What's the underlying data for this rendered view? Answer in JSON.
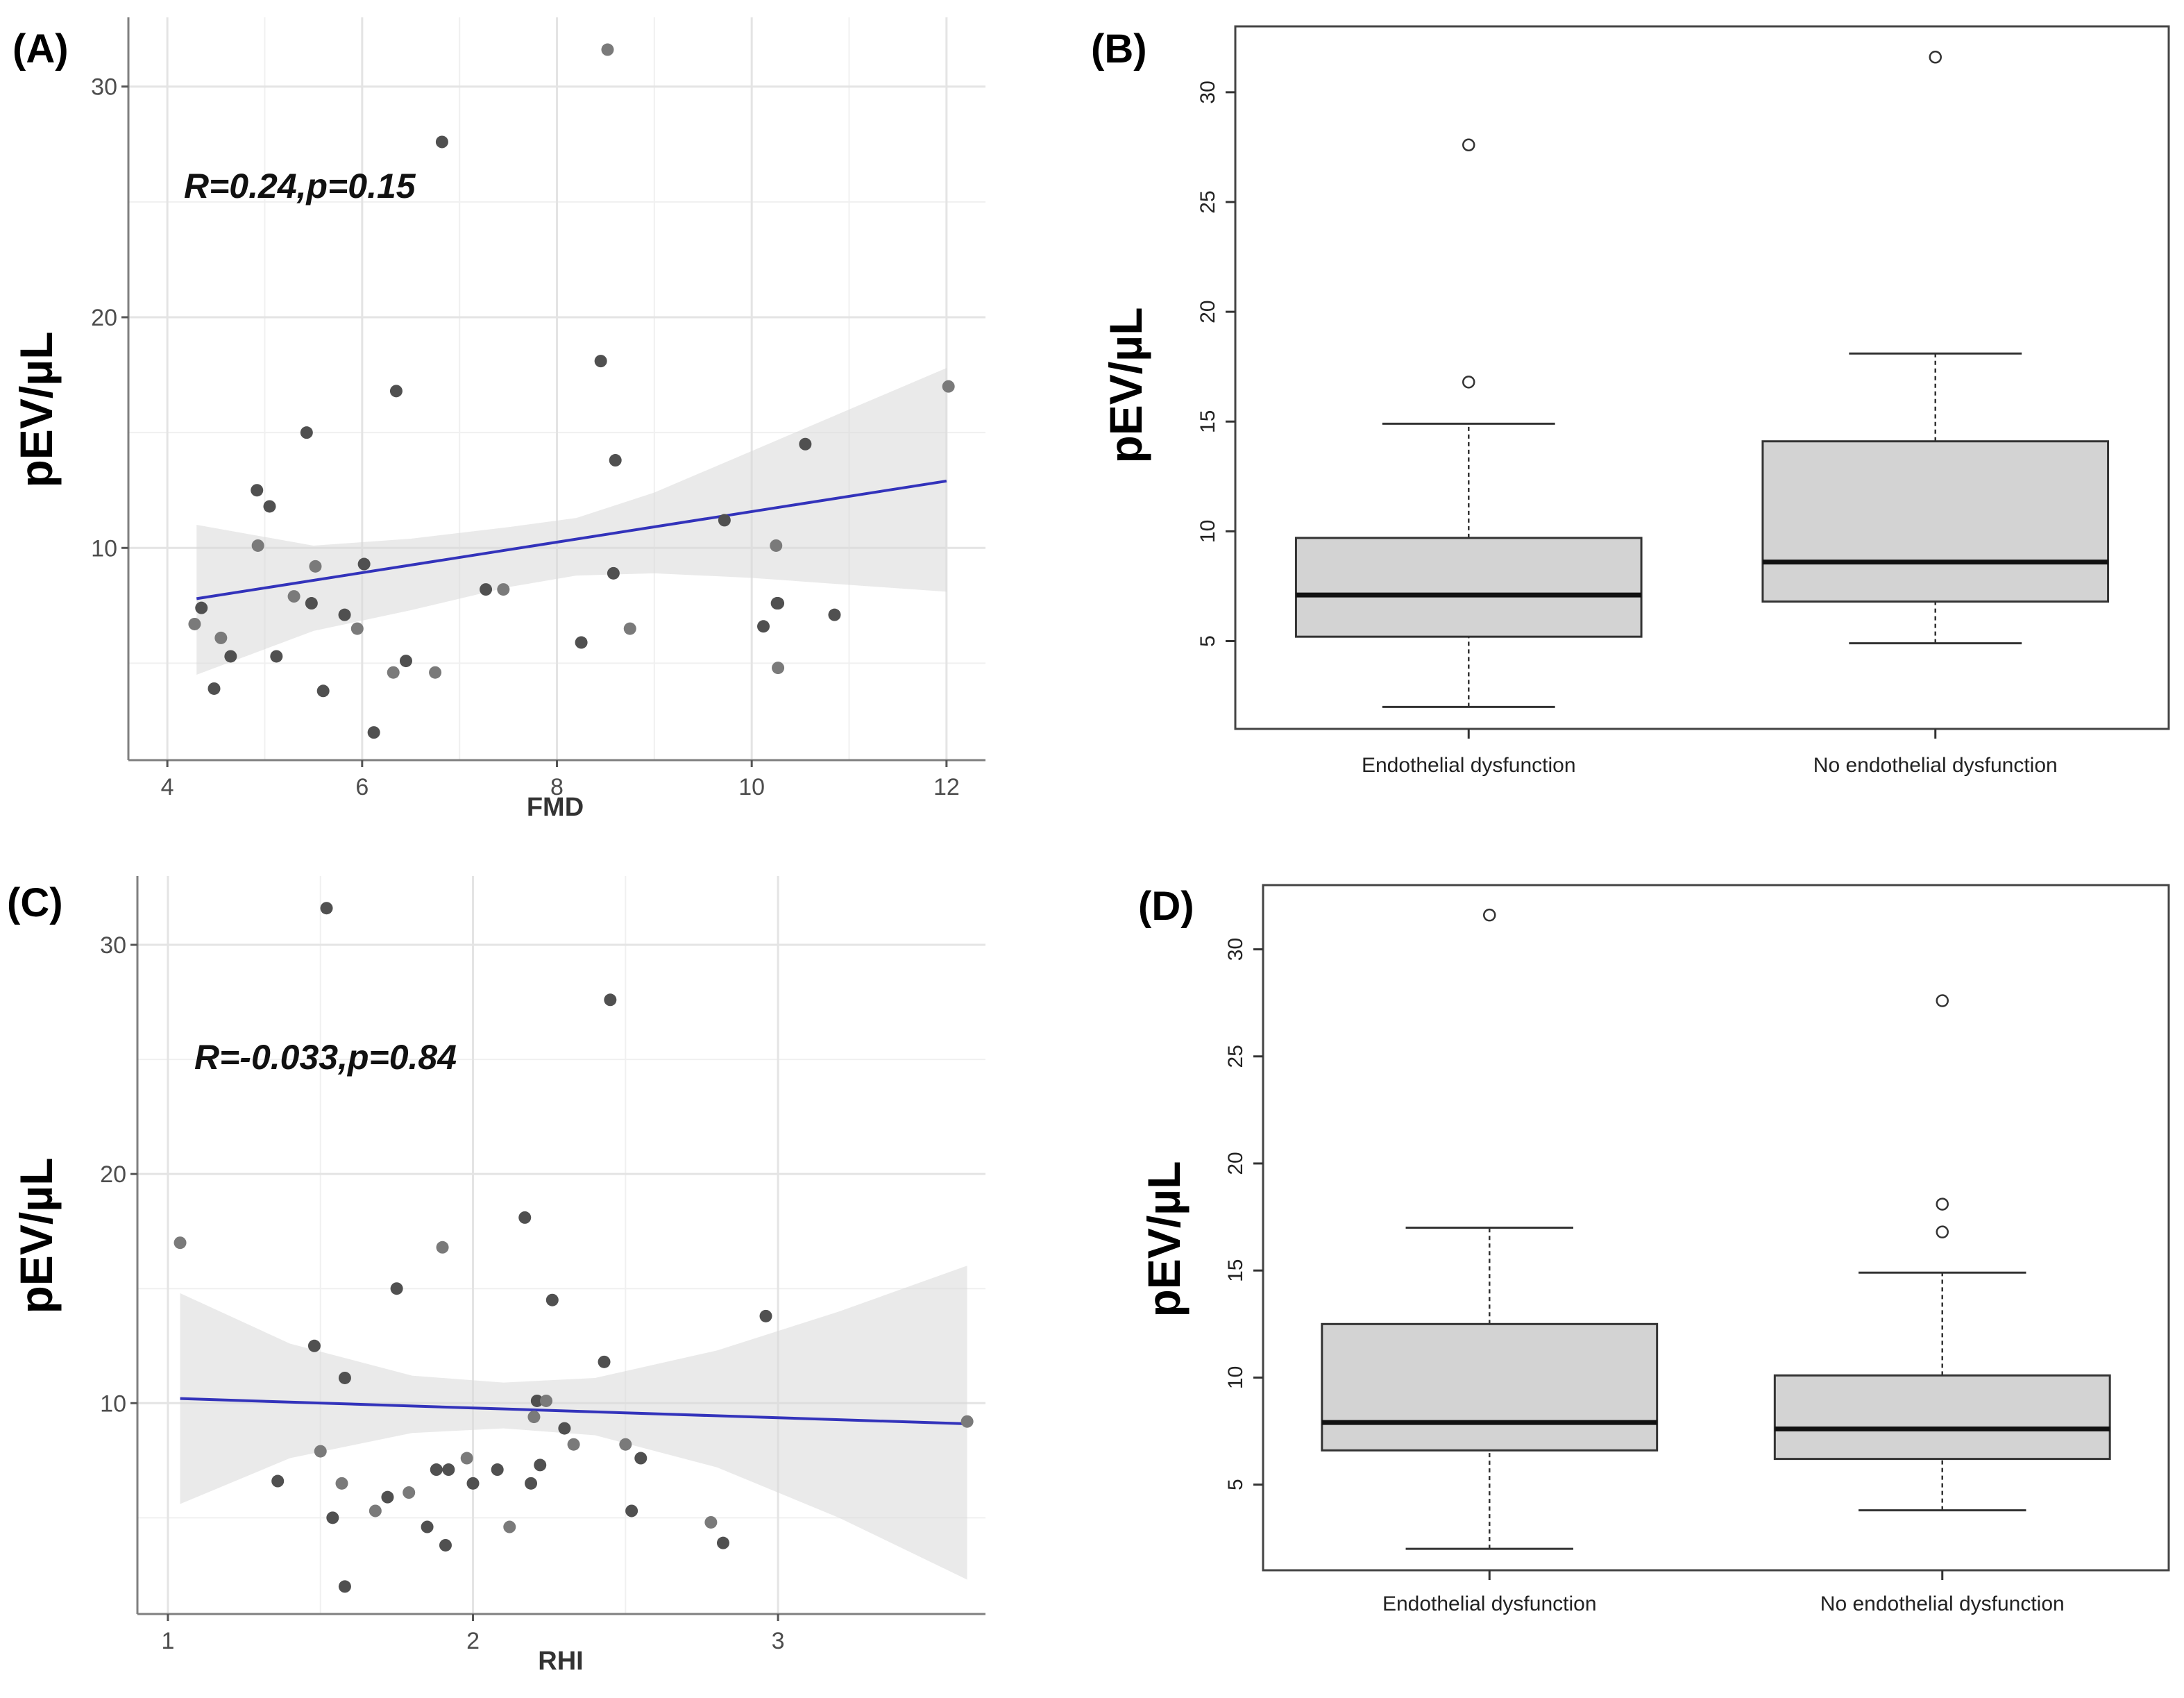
{
  "ylabel": "pEV/µL",
  "chart_data": [
    {
      "panel": "(A)",
      "type": "scatter",
      "xlabel": "FMD",
      "ylabel": "pEV/µL",
      "annotation": "R=0.24,p=0.15",
      "xlim": [
        3.6,
        12.4
      ],
      "ylim": [
        0.8,
        33.0
      ],
      "xticks": [
        4,
        6,
        8,
        10,
        12
      ],
      "yticks": [
        10,
        20,
        30
      ],
      "grid": true,
      "fit": {
        "x": [
          4.3,
          12.0
        ],
        "y": [
          7.8,
          12.9
        ]
      },
      "band": {
        "x": [
          4.3,
          5.5,
          6.5,
          7.5,
          8.2,
          9.0,
          10.0,
          11.0,
          12.0
        ],
        "lower": [
          4.5,
          6.4,
          7.3,
          8.3,
          8.8,
          8.9,
          8.7,
          8.4,
          8.1
        ],
        "upper": [
          11.0,
          10.1,
          10.4,
          10.9,
          11.3,
          12.4,
          14.2,
          16.0,
          17.8
        ]
      },
      "points": {
        "x": [
          4.28,
          4.35,
          4.48,
          4.55,
          4.65,
          4.92,
          4.93,
          5.05,
          5.12,
          5.3,
          5.43,
          5.48,
          5.52,
          5.6,
          5.82,
          5.95,
          6.02,
          6.12,
          6.32,
          6.35,
          6.45,
          6.75,
          6.82,
          7.27,
          7.45,
          8.25,
          8.45,
          8.52,
          8.58,
          8.6,
          8.75,
          9.72,
          10.12,
          10.25,
          10.26,
          10.27,
          10.27,
          10.55,
          10.85,
          12.02
        ],
        "y": [
          6.7,
          7.4,
          3.9,
          6.1,
          5.3,
          12.5,
          10.1,
          11.8,
          5.3,
          7.9,
          15.0,
          7.6,
          9.2,
          3.8,
          7.1,
          6.5,
          9.3,
          2.0,
          4.6,
          16.8,
          5.1,
          4.6,
          27.6,
          8.2,
          8.2,
          5.9,
          18.1,
          31.6,
          8.9,
          13.8,
          6.5,
          11.2,
          6.6,
          10.1,
          7.6,
          7.6,
          4.8,
          14.5,
          7.1,
          17.0
        ]
      }
    },
    {
      "panel": "(B)",
      "type": "box",
      "ylabel": "pEV/µL",
      "categories": [
        "Endothelial dysfunction",
        "No endothelial dysfunction"
      ],
      "ylim": [
        1.0,
        33.0
      ],
      "yticks": [
        5,
        10,
        15,
        20,
        25,
        30
      ],
      "boxes": [
        {
          "whisker_low": 2.0,
          "q1": 5.2,
          "median": 7.1,
          "q3": 9.7,
          "whisker_high": 14.9,
          "outliers": [
            16.8,
            27.6
          ]
        },
        {
          "whisker_low": 4.9,
          "q1": 6.8,
          "median": 8.6,
          "q3": 14.1,
          "whisker_high": 18.1,
          "outliers": [
            31.6
          ]
        }
      ]
    },
    {
      "panel": "(C)",
      "type": "scatter",
      "xlabel": "RHI",
      "ylabel": "pEV/µL",
      "annotation": "R=-0.033,p=0.84",
      "xlim": [
        0.9,
        3.68
      ],
      "ylim": [
        0.8,
        33.0
      ],
      "xticks": [
        1,
        2,
        3
      ],
      "yticks": [
        10,
        20,
        30
      ],
      "grid": true,
      "fit": {
        "x": [
          1.04,
          3.62
        ],
        "y": [
          10.2,
          9.1
        ]
      },
      "band": {
        "x": [
          1.04,
          1.4,
          1.8,
          2.1,
          2.4,
          2.8,
          3.2,
          3.62
        ],
        "lower": [
          5.6,
          7.6,
          8.7,
          8.9,
          8.6,
          7.2,
          5.0,
          2.3
        ],
        "upper": [
          14.8,
          12.6,
          11.2,
          10.9,
          11.1,
          12.3,
          14.0,
          16.0
        ]
      },
      "points": {
        "x": [
          1.04,
          1.36,
          1.48,
          1.5,
          1.52,
          1.54,
          1.57,
          1.58,
          1.58,
          1.68,
          1.72,
          1.75,
          1.79,
          1.85,
          1.88,
          1.9,
          1.91,
          1.92,
          1.98,
          2.0,
          2.08,
          2.12,
          2.17,
          2.19,
          2.2,
          2.21,
          2.22,
          2.24,
          2.26,
          2.3,
          2.33,
          2.43,
          2.45,
          2.5,
          2.52,
          2.55,
          2.78,
          2.82,
          2.96,
          3.62
        ],
        "y": [
          17.0,
          6.6,
          12.5,
          7.9,
          31.6,
          5.0,
          6.5,
          11.1,
          2.0,
          5.3,
          5.9,
          15.0,
          6.1,
          4.6,
          7.1,
          16.8,
          3.8,
          7.1,
          7.6,
          6.5,
          7.1,
          4.6,
          18.1,
          6.5,
          9.4,
          10.1,
          7.3,
          10.1,
          14.5,
          8.9,
          8.2,
          11.8,
          27.6,
          8.2,
          5.3,
          7.6,
          4.8,
          3.9,
          13.8,
          9.2
        ]
      }
    },
    {
      "panel": "(D)",
      "type": "box",
      "ylabel": "pEV/µL",
      "categories": [
        "Endothelial dysfunction",
        "No endothelial dysfunction"
      ],
      "ylim": [
        1.0,
        33.0
      ],
      "yticks": [
        5,
        10,
        15,
        20,
        25,
        30
      ],
      "boxes": [
        {
          "whisker_low": 2.0,
          "q1": 6.6,
          "median": 7.9,
          "q3": 12.5,
          "whisker_high": 17.0,
          "outliers": [
            31.6
          ]
        },
        {
          "whisker_low": 3.8,
          "q1": 6.2,
          "median": 7.6,
          "q3": 10.1,
          "whisker_high": 14.9,
          "outliers": [
            16.8,
            18.1,
            27.6
          ]
        }
      ]
    }
  ]
}
